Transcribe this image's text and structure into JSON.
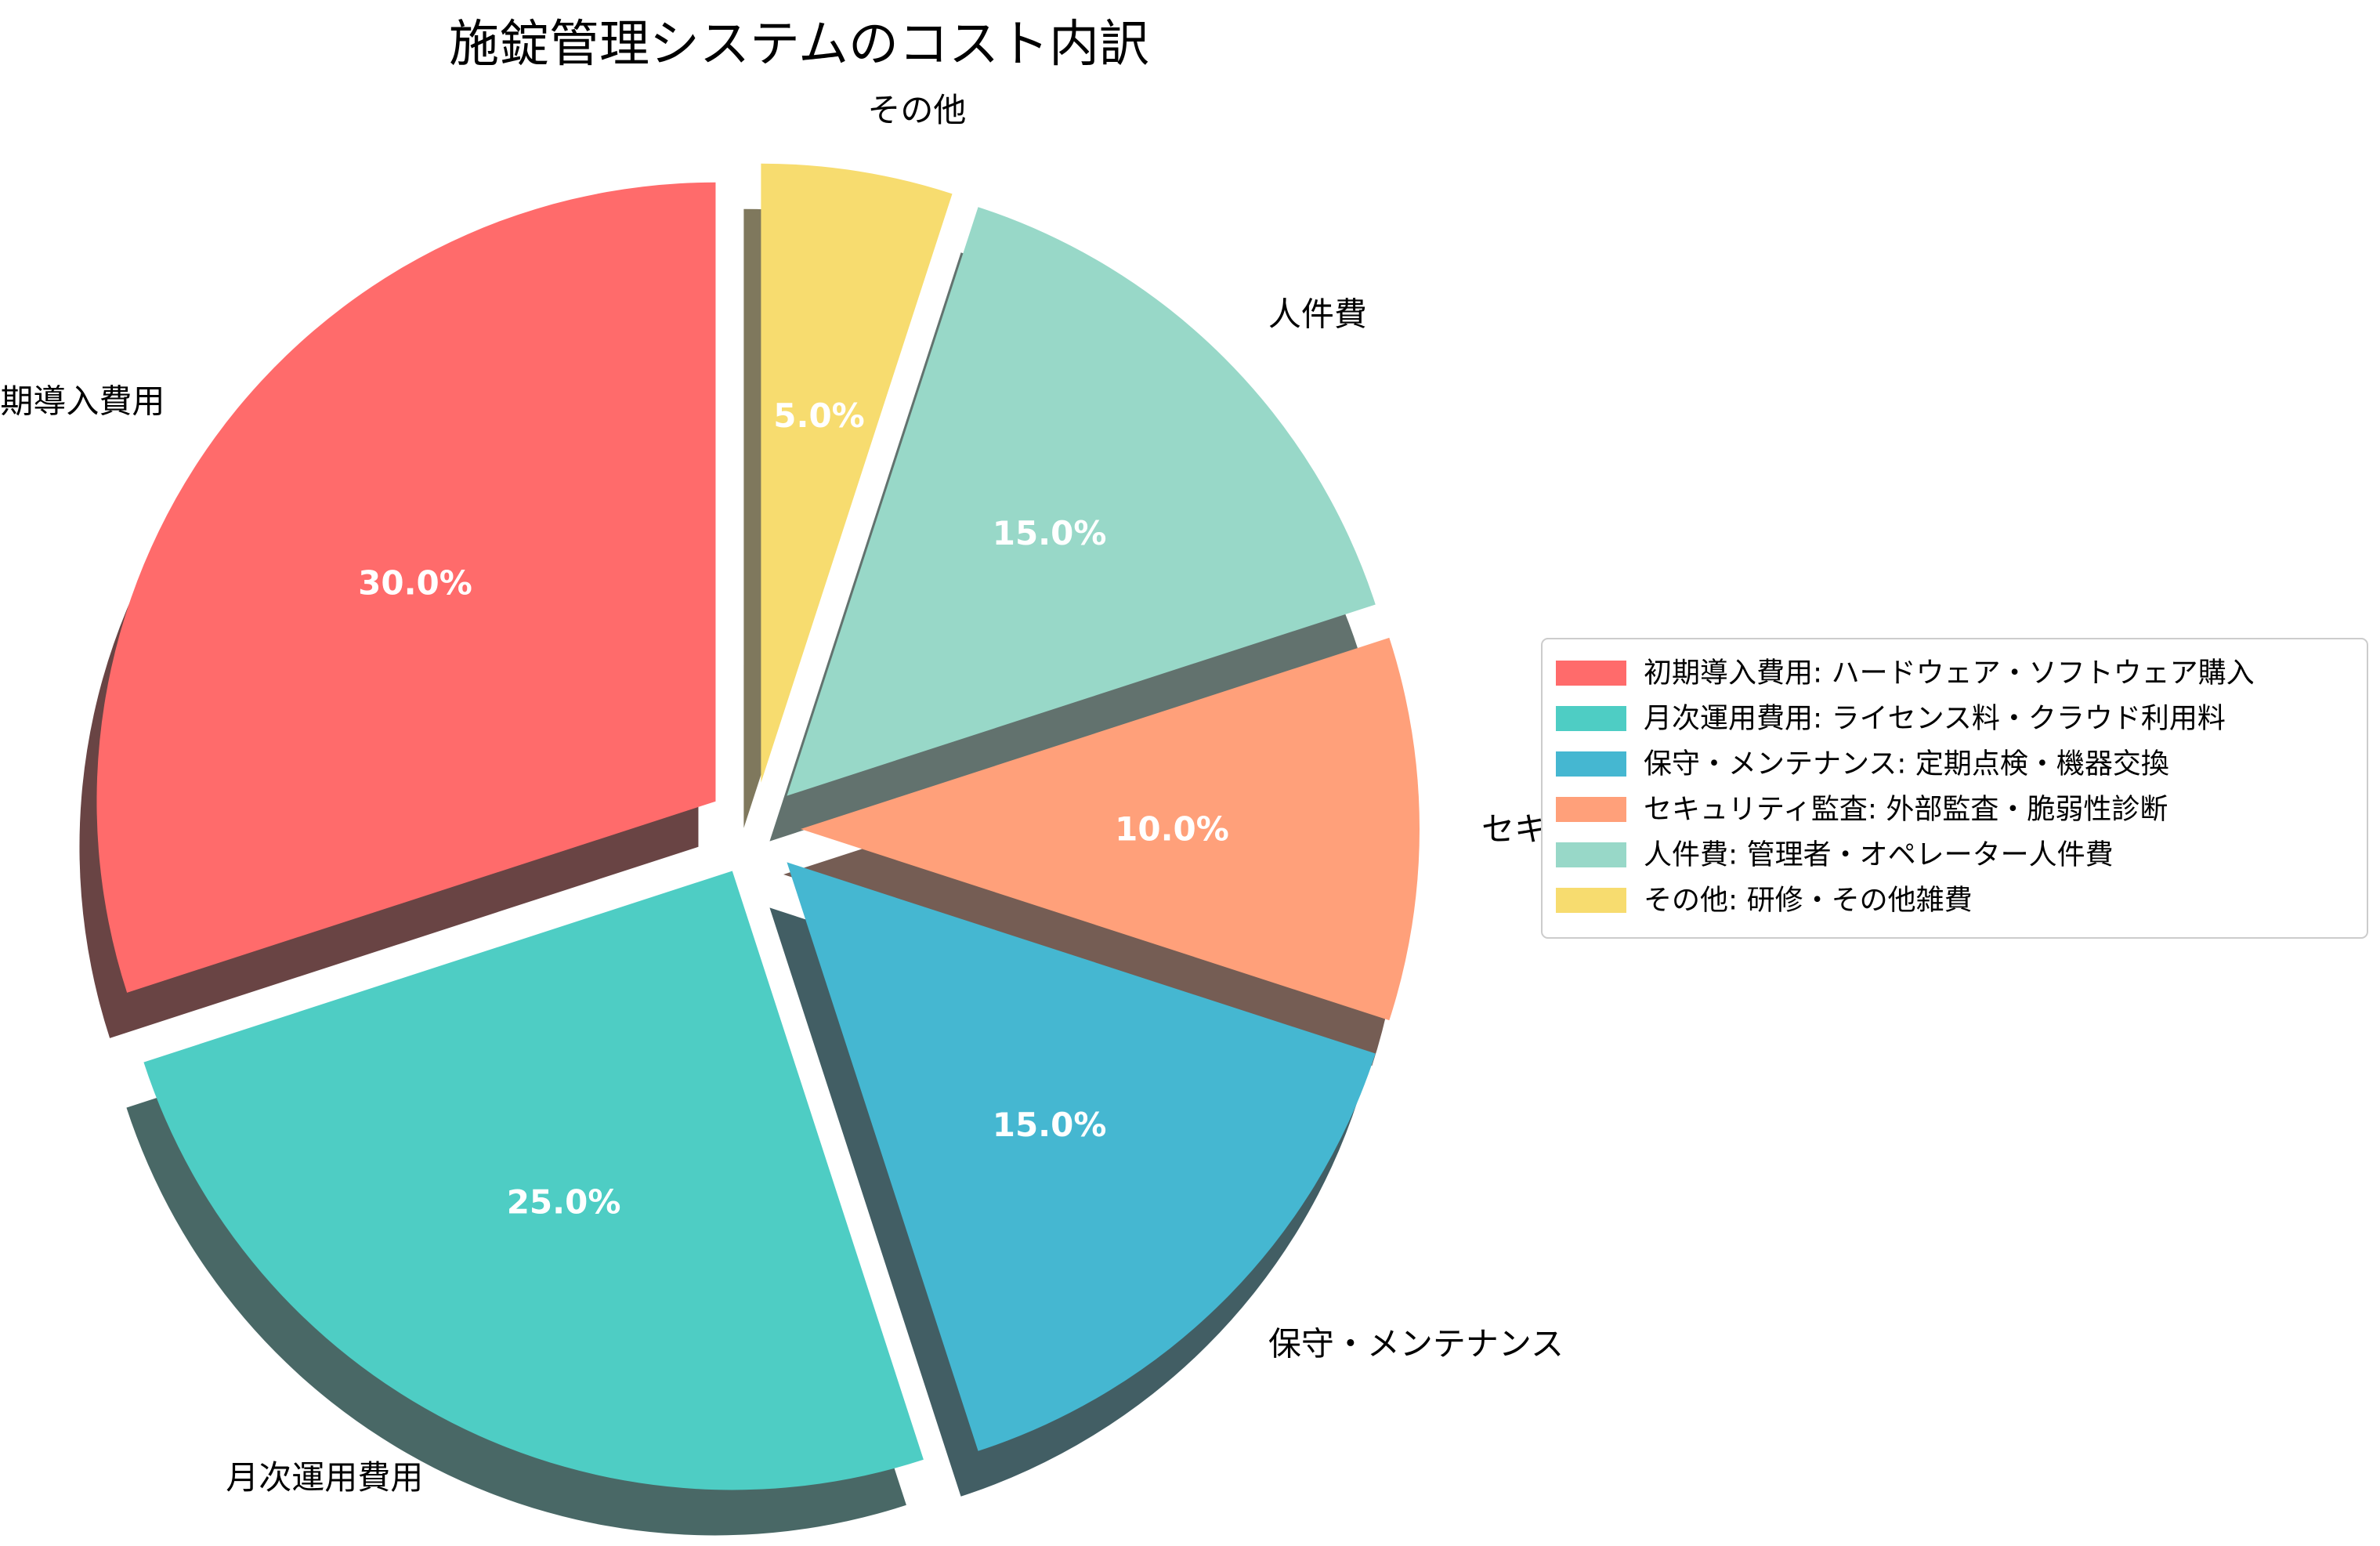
{
  "chart_data": {
    "type": "pie",
    "title": "施錠管理システムのコスト内訳",
    "categories": [
      "初期導入費用",
      "月次運用費用",
      "保守・メンテナンス",
      "セキュリティ監査",
      "人件費",
      "その他"
    ],
    "values": [
      30.0,
      25.0,
      15.0,
      10.0,
      15.0,
      5.0
    ],
    "percent_labels": [
      "30.0%",
      "25.0%",
      "15.0%",
      "10.0%",
      "15.0%",
      "5.0%"
    ],
    "colors": [
      "#ff6b6b",
      "#4ecdc4",
      "#45b7d1",
      "#ffa07a",
      "#98d8c8",
      "#f7dc6f"
    ],
    "legend": {
      "placement": "right",
      "entries": [
        "初期導入費用: ハードウェア・ソフトウェア購入",
        "月次運用費用: ライセンス料・クラウド利用料",
        "保守・メンテナンス: 定期点検・機器交換",
        "セキュリティ監査: 外部監査・脆弱性診断",
        "人件費: 管理者・オペレーター人件費",
        "その他: 研修・その他雑費"
      ]
    },
    "start_angle": 90,
    "direction": "counterclockwise",
    "exploded": true,
    "shadow": true
  }
}
